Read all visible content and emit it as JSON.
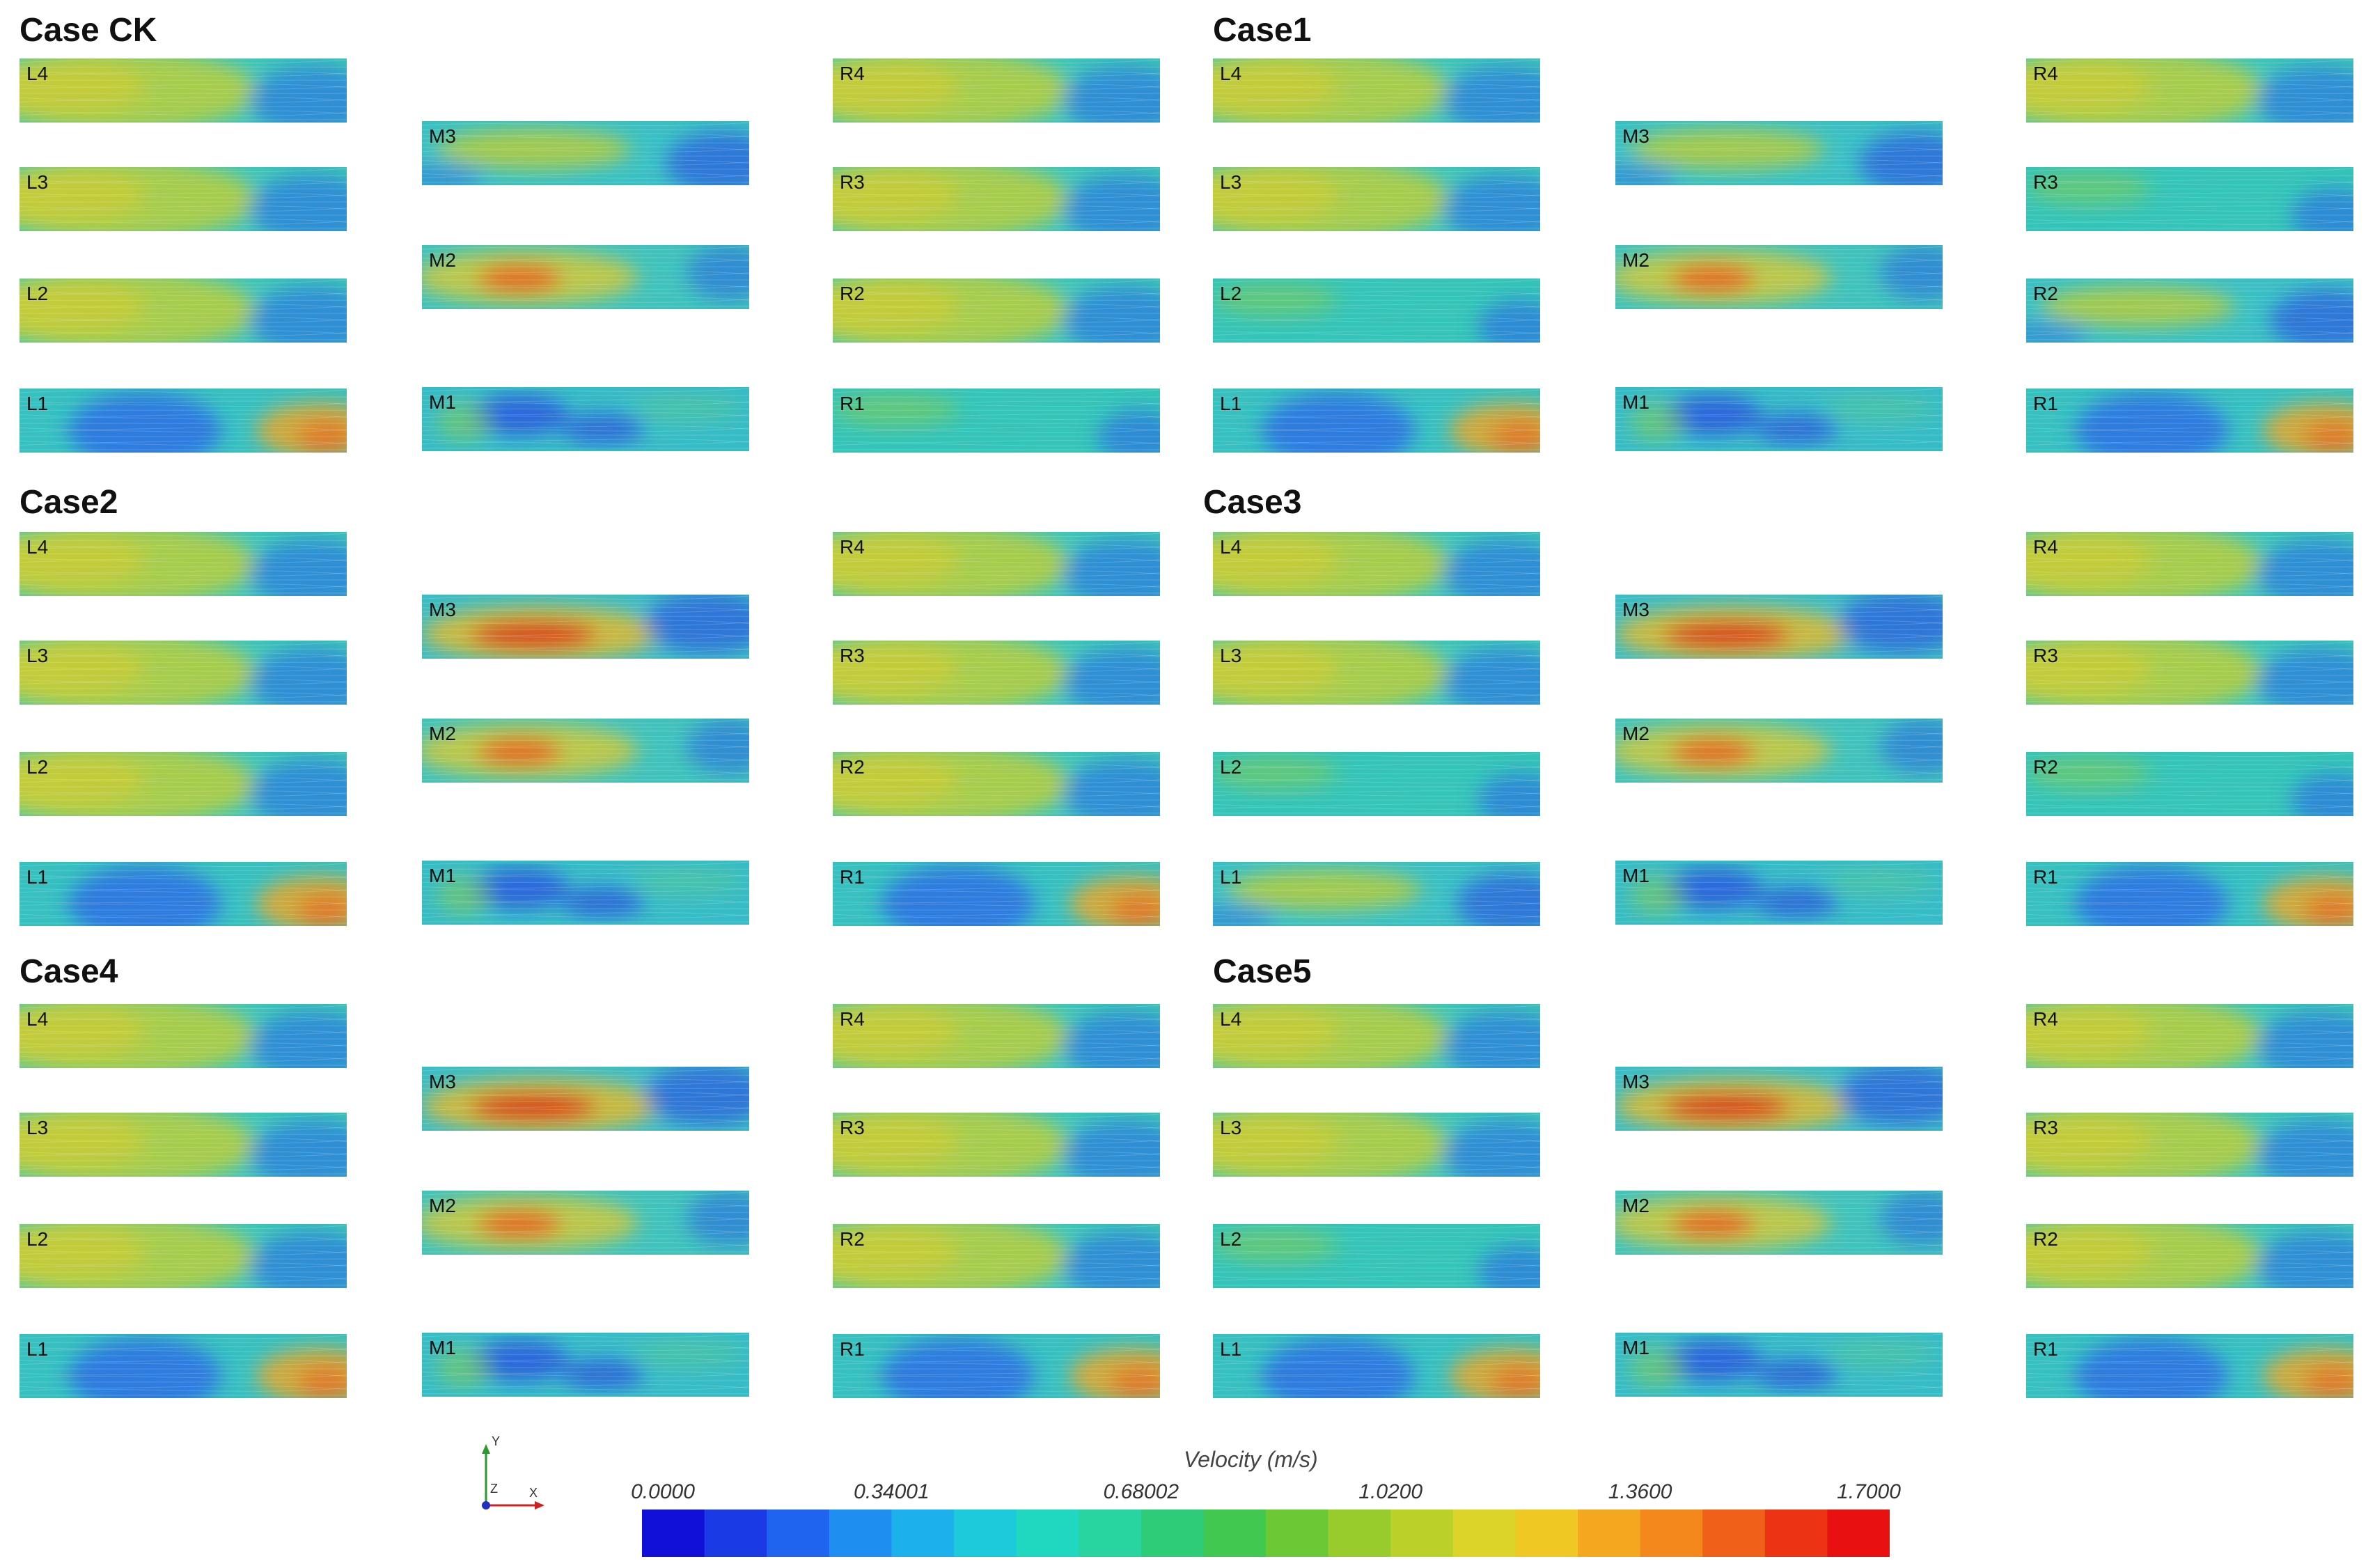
{
  "cases": [
    {
      "title": "Case CK",
      "panels": [
        {
          "label": "L4",
          "flow": "left-fast"
        },
        {
          "label": "L3",
          "flow": "left-fast"
        },
        {
          "label": "L2",
          "flow": "left-fast"
        },
        {
          "label": "L1",
          "flow": "corner-fast"
        },
        {
          "label": "M3",
          "flow": "mid-medium"
        },
        {
          "label": "M2",
          "flow": "mid-jet"
        },
        {
          "label": "M1",
          "flow": "slow"
        },
        {
          "label": "R4",
          "flow": "left-fast"
        },
        {
          "label": "R3",
          "flow": "left-fast"
        },
        {
          "label": "R2",
          "flow": "left-fast"
        },
        {
          "label": "R1",
          "flow": "uniform"
        }
      ]
    },
    {
      "title": "Case1",
      "panels": [
        {
          "label": "L4",
          "flow": "left-fast"
        },
        {
          "label": "L3",
          "flow": "left-fast"
        },
        {
          "label": "L2",
          "flow": "uniform"
        },
        {
          "label": "L1",
          "flow": "corner-fast"
        },
        {
          "label": "M3",
          "flow": "mid-medium"
        },
        {
          "label": "M2",
          "flow": "mid-jet"
        },
        {
          "label": "M1",
          "flow": "slow"
        },
        {
          "label": "R4",
          "flow": "left-fast"
        },
        {
          "label": "R3",
          "flow": "uniform"
        },
        {
          "label": "R2",
          "flow": "mid-medium"
        },
        {
          "label": "R1",
          "flow": "corner-fast"
        }
      ]
    },
    {
      "title": "Case2",
      "panels": [
        {
          "label": "L4",
          "flow": "left-fast"
        },
        {
          "label": "L3",
          "flow": "left-fast"
        },
        {
          "label": "L2",
          "flow": "left-fast"
        },
        {
          "label": "L1",
          "flow": "corner-fast"
        },
        {
          "label": "M3",
          "flow": "mid-strong"
        },
        {
          "label": "M2",
          "flow": "mid-jet"
        },
        {
          "label": "M1",
          "flow": "slow"
        },
        {
          "label": "R4",
          "flow": "left-fast"
        },
        {
          "label": "R3",
          "flow": "left-fast"
        },
        {
          "label": "R2",
          "flow": "left-fast"
        },
        {
          "label": "R1",
          "flow": "corner-fast"
        }
      ]
    },
    {
      "title": "Case3",
      "panels": [
        {
          "label": "L4",
          "flow": "left-fast"
        },
        {
          "label": "L3",
          "flow": "left-fast"
        },
        {
          "label": "L2",
          "flow": "uniform"
        },
        {
          "label": "L1",
          "flow": "mid-medium"
        },
        {
          "label": "M3",
          "flow": "mid-strong"
        },
        {
          "label": "M2",
          "flow": "mid-jet"
        },
        {
          "label": "M1",
          "flow": "slow"
        },
        {
          "label": "R4",
          "flow": "left-fast"
        },
        {
          "label": "R3",
          "flow": "left-fast"
        },
        {
          "label": "R2",
          "flow": "uniform"
        },
        {
          "label": "R1",
          "flow": "corner-fast"
        }
      ]
    },
    {
      "title": "Case4",
      "panels": [
        {
          "label": "L4",
          "flow": "left-fast"
        },
        {
          "label": "L3",
          "flow": "left-fast"
        },
        {
          "label": "L2",
          "flow": "left-fast"
        },
        {
          "label": "L1",
          "flow": "corner-fast"
        },
        {
          "label": "M3",
          "flow": "mid-strong"
        },
        {
          "label": "M2",
          "flow": "mid-jet"
        },
        {
          "label": "M1",
          "flow": "slow"
        },
        {
          "label": "R4",
          "flow": "left-fast"
        },
        {
          "label": "R3",
          "flow": "left-fast"
        },
        {
          "label": "R2",
          "flow": "left-fast"
        },
        {
          "label": "R1",
          "flow": "corner-fast"
        }
      ]
    },
    {
      "title": "Case5",
      "panels": [
        {
          "label": "L4",
          "flow": "left-fast"
        },
        {
          "label": "L3",
          "flow": "left-fast"
        },
        {
          "label": "L2",
          "flow": "uniform"
        },
        {
          "label": "L1",
          "flow": "corner-fast"
        },
        {
          "label": "M3",
          "flow": "mid-strong"
        },
        {
          "label": "M2",
          "flow": "mid-jet"
        },
        {
          "label": "M1",
          "flow": "slow"
        },
        {
          "label": "R4",
          "flow": "left-fast"
        },
        {
          "label": "R3",
          "flow": "left-fast"
        },
        {
          "label": "R2",
          "flow": "left-fast"
        },
        {
          "label": "R1",
          "flow": "corner-fast"
        }
      ]
    }
  ],
  "legend": {
    "title": "Velocity (m/s)",
    "ticks": [
      "0.0000",
      "0.34001",
      "0.68002",
      "1.0200",
      "1.3600",
      "1.7000"
    ],
    "min": 0,
    "max": 1.7,
    "colors": [
      "#1010d8",
      "#1a3ae6",
      "#1f64ee",
      "#1e8ef0",
      "#1cb0ec",
      "#1ccadc",
      "#20d8c0",
      "#28d4a0",
      "#2ecc78",
      "#40c850",
      "#6cc834",
      "#98cc2c",
      "#bcd02a",
      "#dcd428",
      "#f0c824",
      "#f4a820",
      "#f4881c",
      "#f06018",
      "#ec3414",
      "#e81010"
    ]
  },
  "axes": {
    "y": "Y",
    "z": "Z",
    "x": "X"
  }
}
